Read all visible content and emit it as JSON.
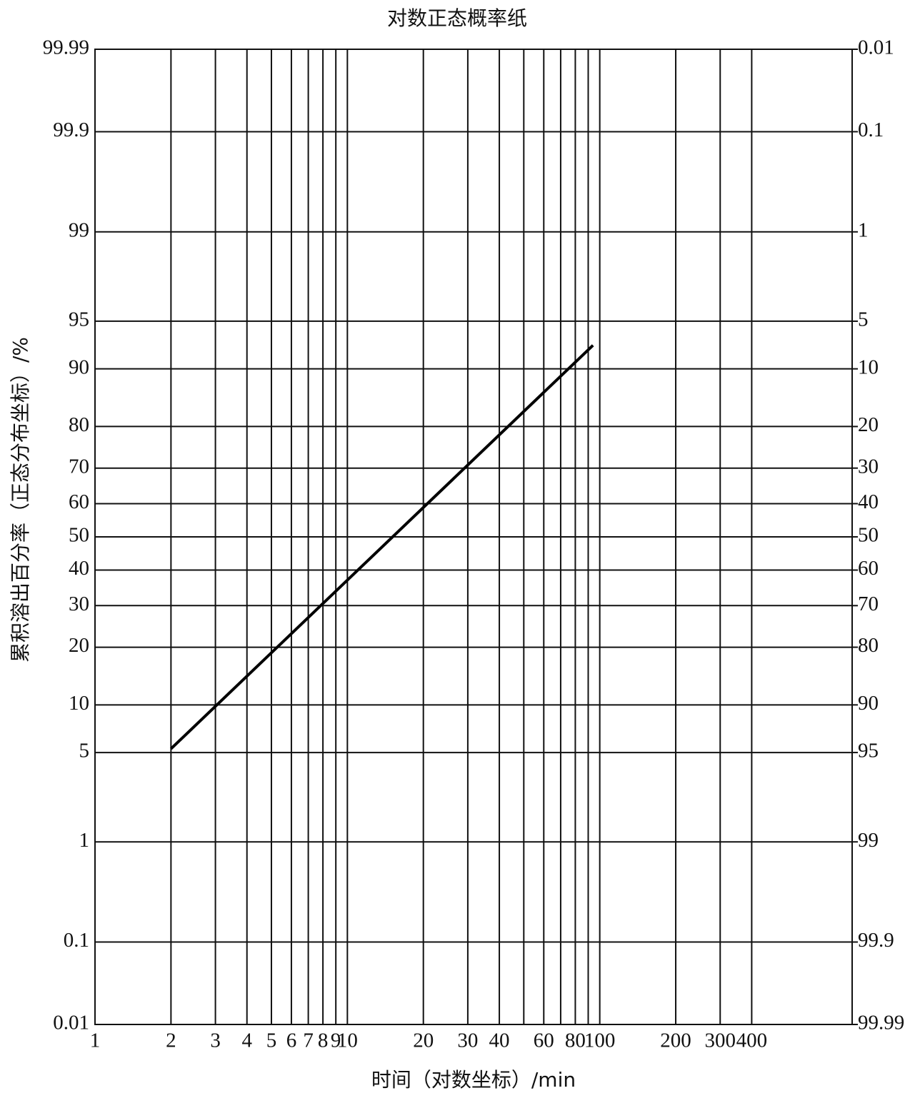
{
  "chart_data": {
    "type": "line",
    "title": "对数正态概率纸",
    "x_label": "时间（对数坐标）/min",
    "y_label": "累积溶出百分率（正态分布坐标）/%",
    "x": [
      2,
      94
    ],
    "values": [
      5.3,
      92.8
    ],
    "color": "#000000",
    "xscale": "log",
    "yscale": "probability",
    "grid": true,
    "xlim": [
      1,
      1000
    ],
    "xticks": [
      1,
      2,
      3,
      4,
      5,
      6,
      7,
      8,
      9,
      10,
      20,
      30,
      40,
      {
        "value": 50,
        "label": null
      },
      60,
      {
        "value": 70,
        "label": null
      },
      80,
      {
        "value": 90,
        "label": null
      },
      100,
      200,
      300,
      400
    ],
    "ylim": [
      0.01,
      99.99
    ],
    "yticks": [
      0.01,
      0.1,
      1,
      5,
      10,
      20,
      30,
      40,
      50,
      60,
      70,
      80,
      90,
      95,
      99,
      99.9,
      99.99
    ],
    "y2lim": [
      99.99,
      0.01
    ],
    "y2ticks": [
      99.99,
      99.9,
      99,
      95,
      90,
      80,
      70,
      60,
      50,
      40,
      30,
      20,
      10,
      5,
      1,
      0.1,
      0.01
    ]
  }
}
